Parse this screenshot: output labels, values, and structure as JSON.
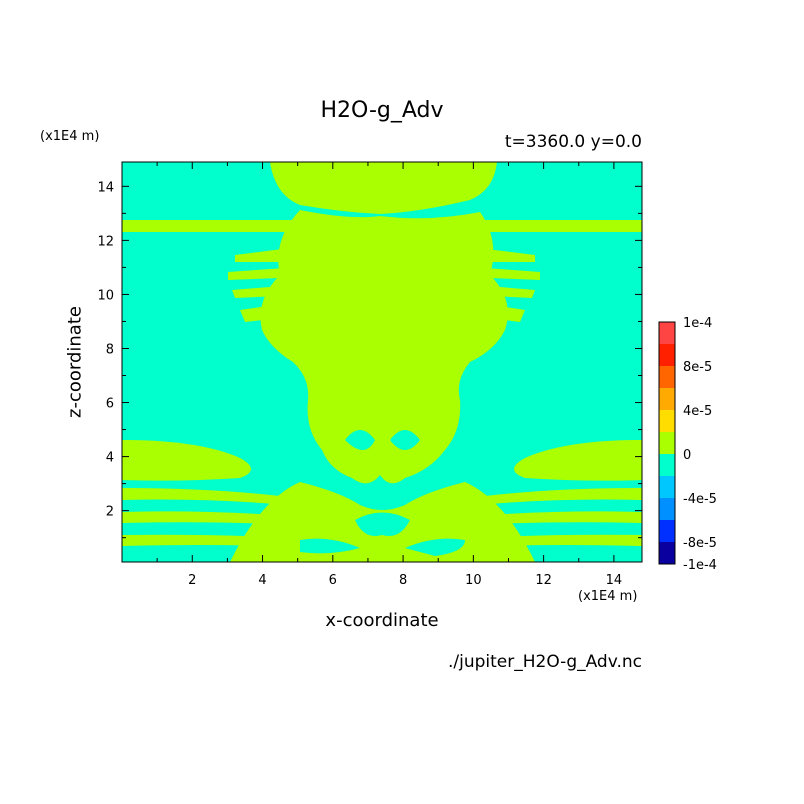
{
  "chart_data": {
    "type": "heatmap",
    "title": "H2O-g_Adv",
    "subtitle": "t=3360.0 y=0.0",
    "xlabel": "x-coordinate",
    "ylabel": "z-coordinate",
    "x_unit": "(x1E4 m)",
    "y_unit": "(x1E4 m)",
    "xlim": [
      0,
      14.8
    ],
    "ylim": [
      0.1,
      14.9
    ],
    "xticks": [
      2,
      4,
      6,
      8,
      10,
      12,
      14
    ],
    "yticks": [
      2,
      4,
      6,
      8,
      10,
      12,
      14
    ],
    "source": "./jupiter_H2O-g_Adv.nc",
    "colorbar": {
      "range": [
        -0.0001,
        0.0001
      ],
      "tick_labels": [
        "1e-4",
        "8e-5",
        "4e-5",
        "0",
        "-4e-5",
        "-8e-5",
        "-1e-4"
      ],
      "tick_values": [
        0.0001,
        8e-05,
        4e-05,
        0,
        -4e-05,
        -8e-05,
        -0.0001
      ],
      "levels": [
        {
          "lo": -0.0001,
          "hi": -8e-05,
          "color": "#0a00a0"
        },
        {
          "lo": -8e-05,
          "hi": -6e-05,
          "color": "#0030ff"
        },
        {
          "lo": -6e-05,
          "hi": -4e-05,
          "color": "#0090ff"
        },
        {
          "lo": -4e-05,
          "hi": -2e-05,
          "color": "#00c8ff"
        },
        {
          "lo": -2e-05,
          "hi": 0,
          "color": "#00ffcc"
        },
        {
          "lo": 0,
          "hi": 2e-05,
          "color": "#aaff00"
        },
        {
          "lo": 2e-05,
          "hi": 4e-05,
          "color": "#ffdd00"
        },
        {
          "lo": 4e-05,
          "hi": 6e-05,
          "color": "#ffaa00"
        },
        {
          "lo": 6e-05,
          "hi": 8e-05,
          "color": "#ff6600"
        },
        {
          "lo": 8e-05,
          "hi": 0.0001,
          "color": "#ff2000"
        },
        {
          "lo": 0.0001,
          "hi": 0.00012,
          "color": "#ff4444"
        }
      ]
    },
    "background_color": "#00ffcc",
    "feature_color": "#aaff00"
  }
}
